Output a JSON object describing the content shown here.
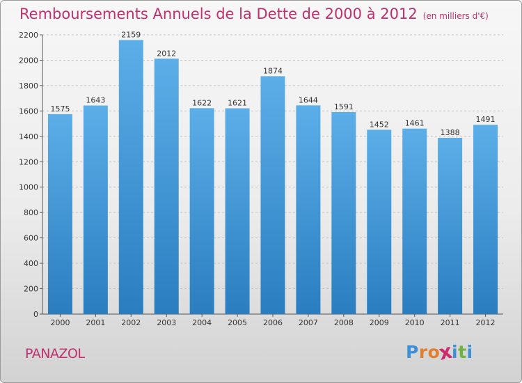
{
  "header": {
    "title": "Remboursements Annuels de la Dette de 2000 à 2012",
    "unit": "(en milliers d'€)"
  },
  "footer": {
    "commune": "PANAZOL",
    "logo": [
      "P",
      "r",
      "o",
      "x",
      "i",
      "t",
      "i"
    ]
  },
  "colors": {
    "title": "#c0306e",
    "bar_top": "#5caee8",
    "bar_bottom": "#2a7ec0",
    "logo": [
      "#3d8fd6",
      "#e07f2e",
      "#e07f2e",
      "#cf2a6e",
      "#3d8fd6",
      "#6fb43f",
      "#3d8fd6"
    ]
  },
  "chart_data": {
    "type": "bar",
    "categories": [
      "2000",
      "2001",
      "2002",
      "2003",
      "2004",
      "2005",
      "2006",
      "2007",
      "2008",
      "2009",
      "2010",
      "2011",
      "2012"
    ],
    "values": [
      1575,
      1643,
      2159,
      2012,
      1622,
      1621,
      1874,
      1644,
      1591,
      1452,
      1461,
      1388,
      1491
    ],
    "ylim": [
      0,
      2200
    ],
    "yticks": [
      0,
      200,
      400,
      600,
      800,
      1000,
      1200,
      1400,
      1600,
      1800,
      2000,
      2200
    ],
    "grid": true,
    "xlabel": "",
    "ylabel": ""
  }
}
